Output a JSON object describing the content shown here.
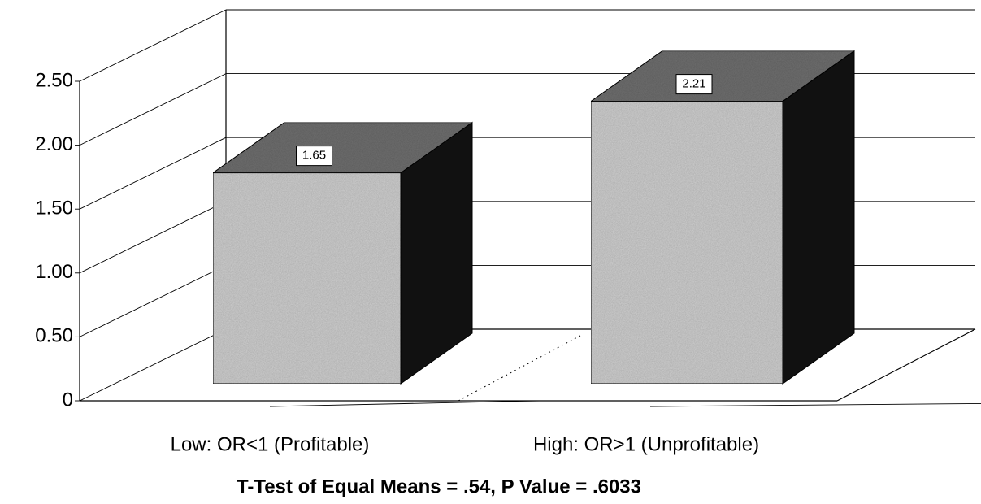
{
  "chart_data": {
    "type": "bar3d",
    "categories": [
      "Low: OR<1 (Profitable)",
      "High: OR>1 (Unprofitable)"
    ],
    "values": [
      1.65,
      2.21
    ],
    "xlabel": "T-Test of Equal Means = .54,  P Value = .6033",
    "ylim": [
      0,
      2.5
    ],
    "yticks": [
      0,
      {
        "value": 0.5,
        "label": "0.50"
      },
      {
        "value": 1,
        "label": "1.00"
      },
      {
        "value": 1.5,
        "label": "1.50"
      },
      {
        "value": 2,
        "label": "2.00"
      },
      {
        "value": 2.5,
        "label": "2.50"
      }
    ],
    "grid": true,
    "colors": {
      "front": "#cfcfcf",
      "top": "#6f6f6f",
      "side": "#111111"
    }
  }
}
